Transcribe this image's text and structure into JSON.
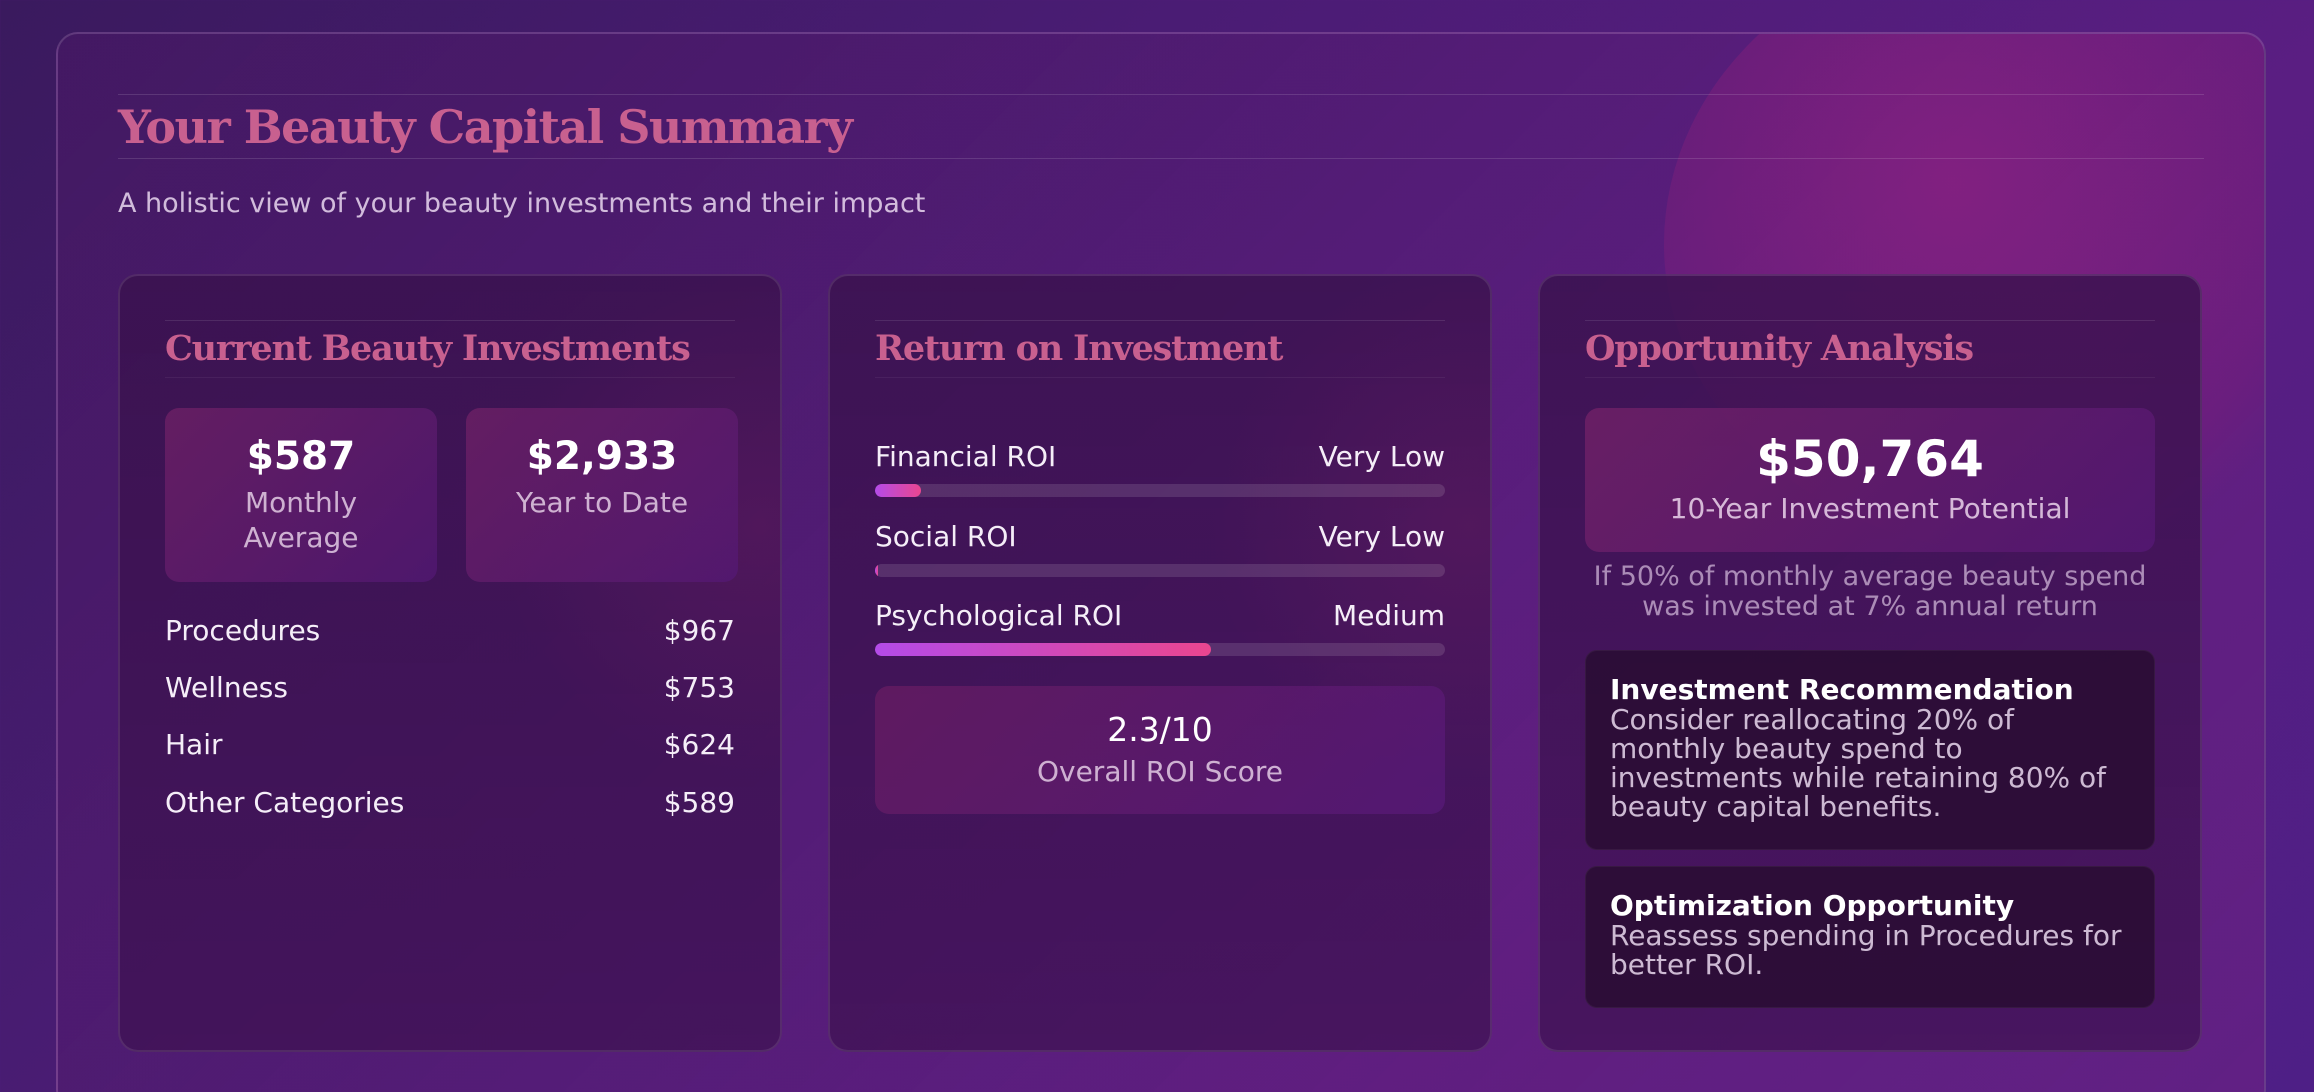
{
  "header": {
    "title": "Your Beauty Capital Summary",
    "subtitle": "A holistic view of your beauty investments and their impact"
  },
  "investments": {
    "title": "Current Beauty Investments",
    "monthly": {
      "value": "$587",
      "label": "Monthly Average"
    },
    "ytd": {
      "value": "$2,933",
      "label": "Year to Date"
    },
    "categories": [
      {
        "name": "Procedures",
        "amount": "$967"
      },
      {
        "name": "Wellness",
        "amount": "$753"
      },
      {
        "name": "Hair",
        "amount": "$624"
      },
      {
        "name": "Other Categories",
        "amount": "$589"
      }
    ]
  },
  "roi": {
    "title": "Return on Investment",
    "items": [
      {
        "name": "Financial ROI",
        "rating": "Very Low",
        "level": 0.08
      },
      {
        "name": "Social ROI",
        "rating": "Very Low",
        "level": 0.005
      },
      {
        "name": "Psychological ROI",
        "rating": "Medium",
        "level": 0.59
      }
    ],
    "score": {
      "value": "2.3/10",
      "label": "Overall ROI Score"
    }
  },
  "opportunity": {
    "title": "Opportunity Analysis",
    "potential": {
      "value": "$50,764",
      "label": "10-Year Investment Potential"
    },
    "note": "If 50% of monthly average beauty spend was invested at 7% annual return",
    "recommendation": {
      "title": "Investment Recommendation",
      "text": "Consider reallocating 20% of monthly beauty spend to investments while retaining 80% of beauty capital benefits."
    },
    "optimization": {
      "title": "Optimization Opportunity",
      "text": "Reassess spending in Procedures for better ROI."
    }
  },
  "colors": {
    "accent": "#c8608f",
    "bar_start": "#b44be8",
    "bar_end": "#e9468f"
  }
}
